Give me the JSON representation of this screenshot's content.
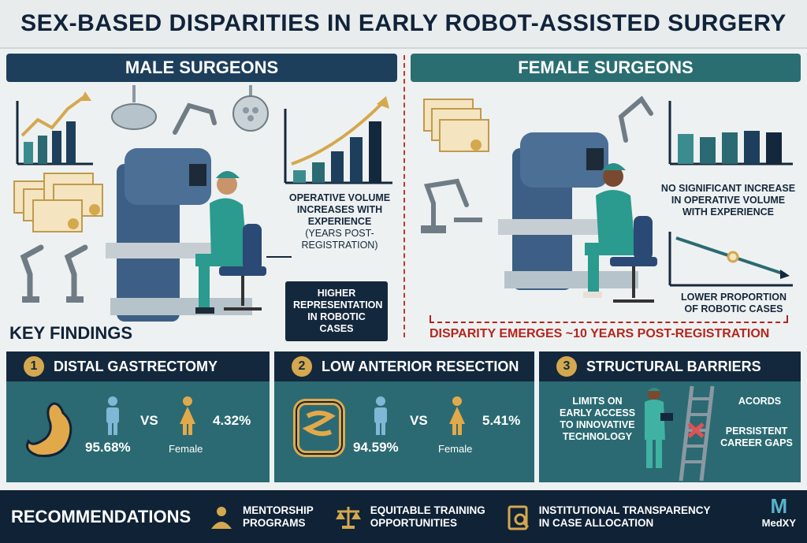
{
  "title": "SEX-BASED DISPARITIES IN EARLY ROBOT-ASSISTED SURGERY",
  "male_panel": {
    "heading": "MALE SURGEONS",
    "volume_label_1": "OPERATIVE VOLUME",
    "volume_label_2": "INCREASES WITH",
    "volume_label_3": "EXPERIENCE",
    "volume_label_sub": "(YEARS POST-REGISTRATION)",
    "representation_1": "HIGHER",
    "representation_2": "REPRESENTATION",
    "representation_3": "IN ROBOTIC CASES"
  },
  "female_panel": {
    "heading": "FEMALE SURGEONS",
    "volume_label_1": "NO SIGNIFICANT INCREASE",
    "volume_label_2": "IN OPERATIVE VOLUME",
    "volume_label_3": "WITH EXPERIENCE",
    "proportion_1": "LOWER PROPORTION",
    "proportion_2": "OF ROBOTIC CASES"
  },
  "disparity_note": "DISPARITY EMERGES ~10 YEARS POST-REGISTRATION",
  "key_findings": {
    "heading": "KEY FINDINGS",
    "cards": [
      {
        "num": "1",
        "title": "DISTAL GASTRECTOMY",
        "male_pct": "95.68%",
        "vs": "VS",
        "female_label": "Female",
        "female_pct": "4.32%"
      },
      {
        "num": "2",
        "title": "LOW ANTERIOR RESECTION",
        "male_pct": "94.59%",
        "vs": "VS",
        "female_label": "Female",
        "female_pct": "5.41%"
      },
      {
        "num": "3",
        "title": "STRUCTURAL BARRIERS",
        "limits_1": "LIMITS ON",
        "limits_2": "EARLY ACCESS",
        "limits_3": "TO INNOVATIVE",
        "limits_4": "TECHNOLOGY",
        "acords": "ACORDS",
        "gaps_1": "PERSISTENT",
        "gaps_2": "CAREER GAPS"
      }
    ]
  },
  "recommendations": {
    "heading": "RECOMMENDATIONS",
    "items": [
      {
        "line1": "MENTORSHIP",
        "line2": "PROGRAMS"
      },
      {
        "line1": "EQUITABLE TRAINING",
        "line2": "OPPORTUNITIES"
      },
      {
        "line1": "INSTITUTIONAL TRANSPARENCY",
        "line2": "IN CASE ALLOCATION"
      }
    ]
  },
  "brand": {
    "mark": "M",
    "name": "MedXY"
  },
  "colors": {
    "navy": "#14283d",
    "teal": "#2b6a72",
    "gold": "#d4a84f",
    "red": "#b3261e"
  }
}
